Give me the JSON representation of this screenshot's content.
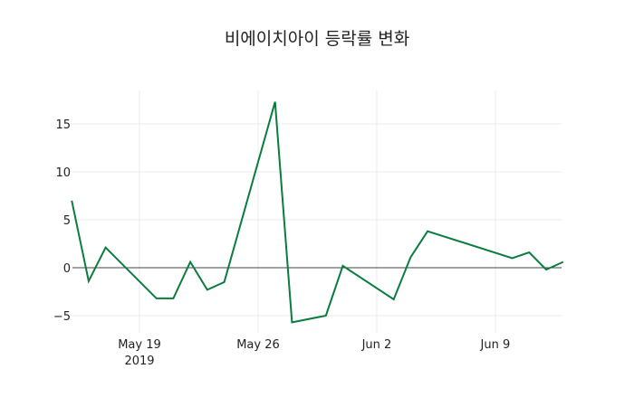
{
  "chart_data": {
    "type": "line",
    "title": "비에이치아이 등락률 변화",
    "xlabel": "",
    "ylabel": "",
    "ylim": [
      -7.2,
      18.5
    ],
    "grid": true,
    "legend": "none",
    "line_color": "#0a7c3e",
    "zero_line_color": "#444444",
    "x_ticks": [
      {
        "label": "May 19",
        "sublabel": "2019",
        "date": "2019-05-19"
      },
      {
        "label": "May 26",
        "sublabel": "",
        "date": "2019-05-26"
      },
      {
        "label": "Jun 2",
        "sublabel": "",
        "date": "2019-06-02"
      },
      {
        "label": "Jun 9",
        "sublabel": "",
        "date": "2019-06-09"
      }
    ],
    "y_ticks": [
      -5,
      0,
      5,
      10,
      15
    ],
    "y_tick_labels": [
      "−5",
      "0",
      "5",
      "10",
      "15"
    ],
    "x": [
      "2019-05-15",
      "2019-05-16",
      "2019-05-17",
      "2019-05-20",
      "2019-05-21",
      "2019-05-22",
      "2019-05-23",
      "2019-05-24",
      "2019-05-27",
      "2019-05-28",
      "2019-05-30",
      "2019-05-31",
      "2019-06-03",
      "2019-06-04",
      "2019-06-05",
      "2019-06-10",
      "2019-06-11",
      "2019-06-12",
      "2019-06-13"
    ],
    "series": [
      {
        "name": "등락률",
        "values": [
          7.0,
          -1.4,
          2.1,
          -3.2,
          -3.2,
          0.6,
          -2.3,
          -1.5,
          17.3,
          -5.7,
          -5.0,
          0.2,
          -3.3,
          1.1,
          3.8,
          1.0,
          1.6,
          -0.2,
          0.6
        ]
      }
    ]
  }
}
